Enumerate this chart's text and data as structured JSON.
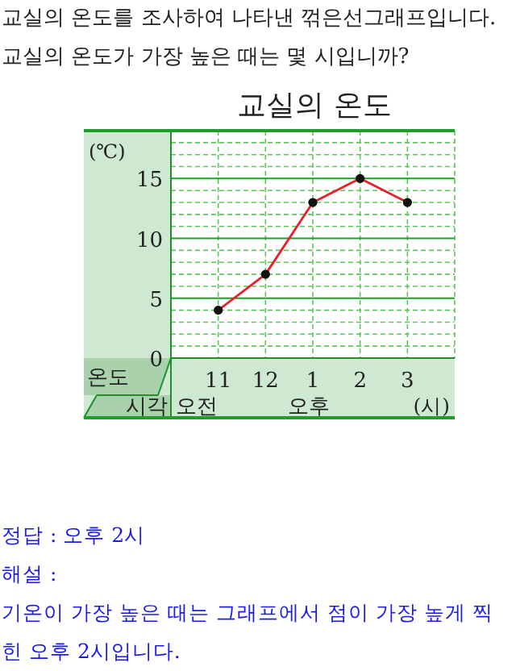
{
  "chart_data": {
    "type": "line",
    "title": "교실의 온도",
    "ylabel": "(℃)",
    "xlabel": "(시)",
    "categories": [
      "11",
      "12",
      "1",
      "2",
      "3"
    ],
    "series": [
      {
        "color": "#e8202a",
        "values": [
          4,
          7,
          13,
          15,
          13
        ]
      }
    ],
    "ylim": [
      0,
      19
    ],
    "yticks": [
      0,
      {
        "value": 1,
        "label": null
      },
      {
        "value": 2,
        "label": null
      },
      {
        "value": 3,
        "label": null
      },
      {
        "value": 4,
        "label": null
      },
      5,
      {
        "value": 6,
        "label": null
      },
      {
        "value": 7,
        "label": null
      },
      {
        "value": 8,
        "label": null
      },
      {
        "value": 9,
        "label": null
      },
      10,
      {
        "value": 11,
        "label": null
      },
      {
        "value": 12,
        "label": null
      },
      {
        "value": 13,
        "label": null
      },
      {
        "value": 14,
        "label": null
      },
      15,
      {
        "value": 16,
        "label": null
      },
      {
        "value": 17,
        "label": null
      },
      {
        "value": 18,
        "label": null
      }
    ],
    "grid": true,
    "marker": "circle",
    "annotations": [
      "교실의 온도를 조사하여 나타낸 꺾은선그래프입니다.",
      "교실의 온도가 가장 높은 때는 몇 시입니까?",
      "온도",
      "시각",
      "오전",
      "오후",
      "정답 : 오후 2시",
      "해설 :",
      "기온이 가장 높은 때는 그래프에서 점이 가장 높게 찍힌 오후 2시입니다."
    ]
  }
}
